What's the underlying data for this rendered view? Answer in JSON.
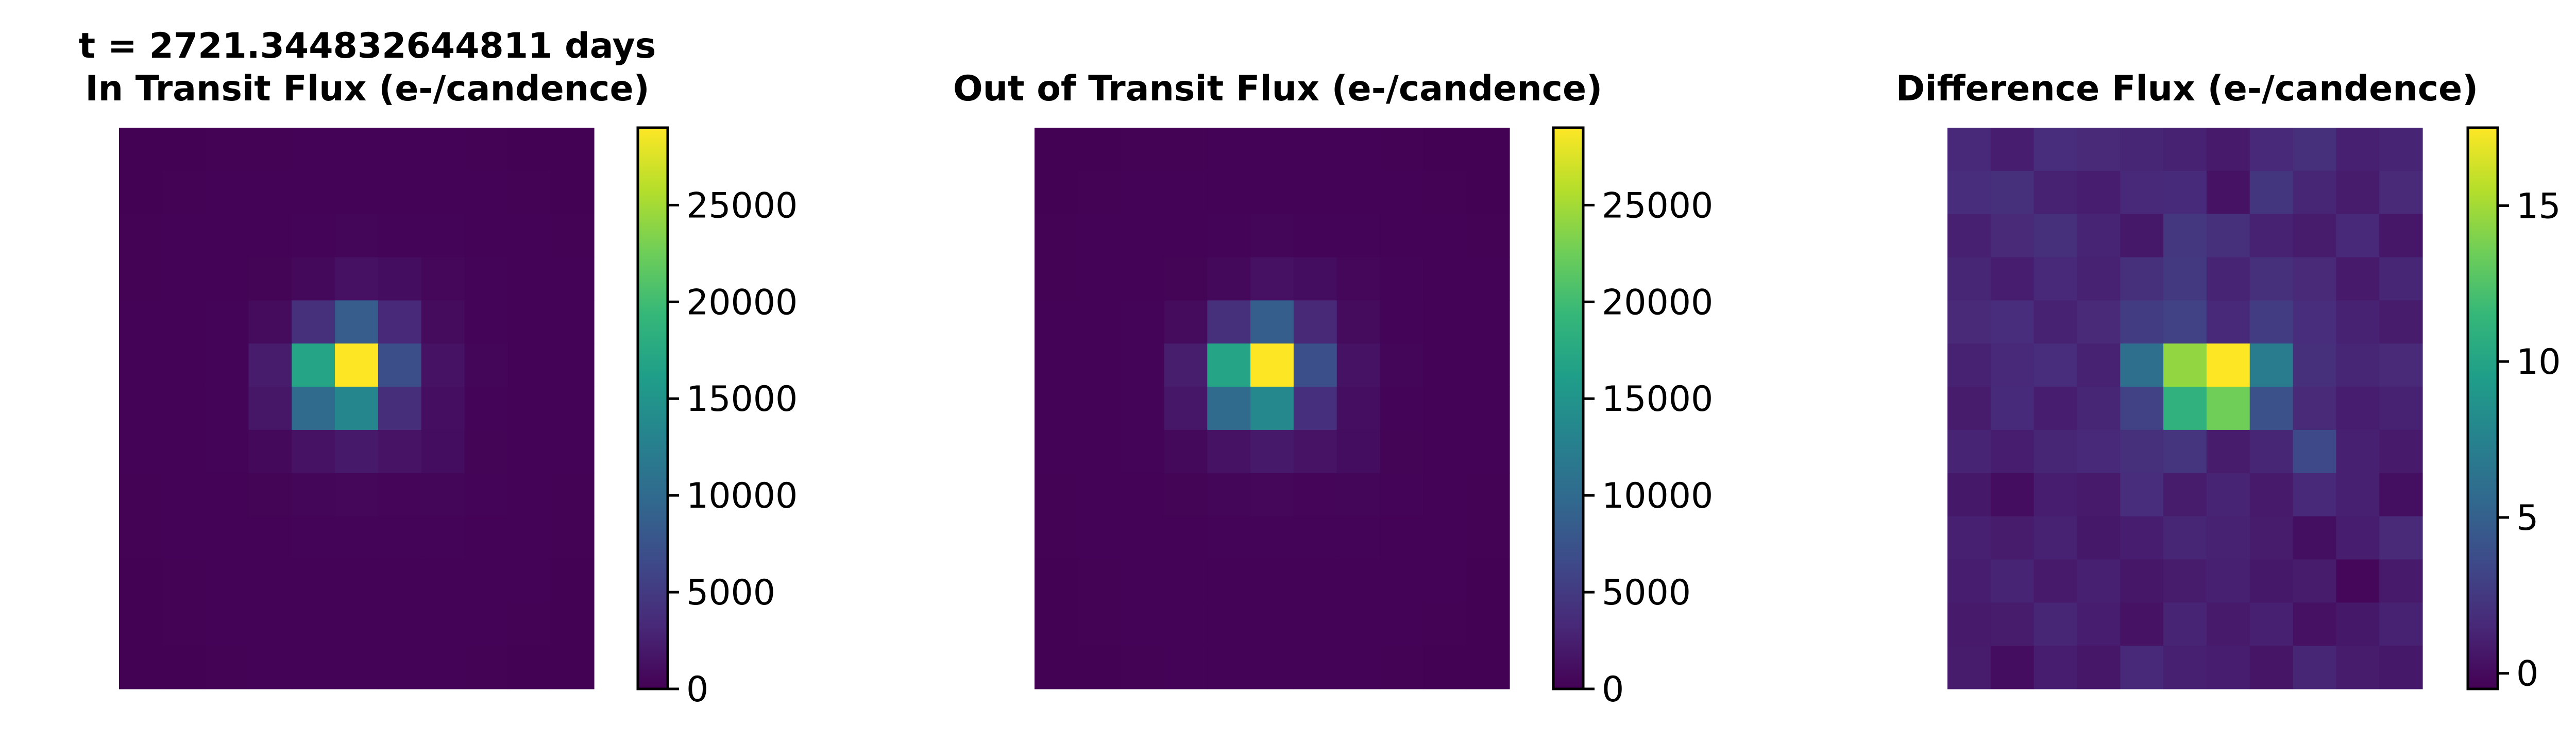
{
  "figure": {
    "time_label": "t = 2721.344832644811 days"
  },
  "colormap": {
    "name": "viridis",
    "stops": [
      "#440154",
      "#482878",
      "#3e4989",
      "#31688e",
      "#26828e",
      "#1f9e89",
      "#35b779",
      "#6ece58",
      "#b5de2b",
      "#fde725"
    ]
  },
  "chart_data": [
    {
      "type": "heatmap",
      "title": "In Transit Flux (e-/candence)",
      "rows": 13,
      "cols": 11,
      "colorbar": {
        "vmin": 0,
        "vmax": 29000,
        "ticks": [
          0,
          5000,
          10000,
          15000,
          20000,
          25000
        ],
        "tick_labels": [
          "0",
          "5000",
          "10000",
          "15000",
          "20000",
          "25000"
        ]
      },
      "values": [
        [
          120,
          120,
          130,
          130,
          140,
          150,
          150,
          140,
          130,
          120,
          120
        ],
        [
          120,
          130,
          140,
          150,
          170,
          190,
          190,
          170,
          150,
          130,
          120
        ],
        [
          130,
          140,
          160,
          190,
          250,
          400,
          350,
          250,
          180,
          150,
          130
        ],
        [
          130,
          150,
          190,
          300,
          700,
          1300,
          1000,
          500,
          250,
          170,
          140
        ],
        [
          140,
          170,
          260,
          800,
          4000,
          8500,
          3200,
          900,
          350,
          190,
          140
        ],
        [
          150,
          190,
          350,
          2200,
          17000,
          29000,
          7000,
          1400,
          400,
          200,
          150
        ],
        [
          150,
          180,
          320,
          1700,
          10000,
          13500,
          3800,
          1100,
          350,
          190,
          150
        ],
        [
          140,
          170,
          260,
          700,
          1400,
          2000,
          1500,
          1000,
          300,
          180,
          140
        ],
        [
          130,
          150,
          200,
          300,
          400,
          500,
          450,
          400,
          250,
          160,
          130
        ],
        [
          130,
          140,
          170,
          200,
          250,
          280,
          260,
          230,
          190,
          150,
          130
        ],
        [
          120,
          130,
          150,
          170,
          190,
          200,
          190,
          170,
          160,
          140,
          120
        ],
        [
          120,
          130,
          140,
          150,
          160,
          160,
          160,
          150,
          140,
          130,
          120
        ],
        [
          120,
          120,
          130,
          140,
          140,
          140,
          140,
          140,
          130,
          120,
          120
        ]
      ]
    },
    {
      "type": "heatmap",
      "title": "Out of Transit Flux (e-/candence)",
      "rows": 13,
      "cols": 11,
      "colorbar": {
        "vmin": 0,
        "vmax": 29000,
        "ticks": [
          0,
          5000,
          10000,
          15000,
          20000,
          25000
        ],
        "tick_labels": [
          "0",
          "5000",
          "10000",
          "15000",
          "20000",
          "25000"
        ]
      },
      "values": [
        [
          120,
          120,
          130,
          130,
          140,
          150,
          150,
          140,
          130,
          120,
          120
        ],
        [
          120,
          130,
          140,
          150,
          170,
          190,
          190,
          170,
          150,
          130,
          120
        ],
        [
          130,
          140,
          160,
          190,
          250,
          400,
          350,
          250,
          180,
          150,
          130
        ],
        [
          130,
          150,
          190,
          300,
          700,
          1300,
          1000,
          500,
          250,
          170,
          140
        ],
        [
          140,
          170,
          260,
          800,
          4000,
          8600,
          3300,
          900,
          350,
          190,
          140
        ],
        [
          150,
          190,
          350,
          2300,
          17000,
          29000,
          7100,
          1400,
          400,
          200,
          150
        ],
        [
          150,
          180,
          320,
          1800,
          10100,
          13600,
          3900,
          1100,
          350,
          190,
          150
        ],
        [
          140,
          170,
          260,
          700,
          1400,
          2000,
          1500,
          1000,
          300,
          180,
          140
        ],
        [
          130,
          150,
          200,
          300,
          400,
          500,
          450,
          400,
          250,
          160,
          130
        ],
        [
          130,
          140,
          170,
          200,
          250,
          280,
          260,
          230,
          190,
          150,
          130
        ],
        [
          120,
          130,
          150,
          170,
          190,
          200,
          190,
          170,
          160,
          140,
          120
        ],
        [
          120,
          130,
          140,
          150,
          160,
          160,
          160,
          150,
          140,
          130,
          120
        ],
        [
          120,
          120,
          130,
          140,
          140,
          140,
          140,
          140,
          130,
          120,
          120
        ]
      ]
    },
    {
      "type": "heatmap",
      "title": "Difference Flux (e-/candence)",
      "rows": 13,
      "cols": 11,
      "colorbar": {
        "vmin": -0.5,
        "vmax": 17.5,
        "ticks": [
          0,
          5,
          10,
          15
        ],
        "tick_labels": [
          "0",
          "5",
          "10",
          "15"
        ]
      },
      "values": [
        [
          1.5,
          1.0,
          1.8,
          1.6,
          1.4,
          1.2,
          0.8,
          1.5,
          1.9,
          1.1,
          1.3
        ],
        [
          1.8,
          2.0,
          1.2,
          1.0,
          1.5,
          1.7,
          0.4,
          2.3,
          1.4,
          0.9,
          1.6
        ],
        [
          1.1,
          1.6,
          1.9,
          1.3,
          0.7,
          2.4,
          1.9,
          1.2,
          0.9,
          1.5,
          0.6
        ],
        [
          1.4,
          1.0,
          1.5,
          1.2,
          1.9,
          2.5,
          1.3,
          1.9,
          1.6,
          0.8,
          1.4
        ],
        [
          1.6,
          1.8,
          1.2,
          1.6,
          2.8,
          3.0,
          1.5,
          2.8,
          1.8,
          1.2,
          0.9
        ],
        [
          1.2,
          1.5,
          1.8,
          1.2,
          6.0,
          14.5,
          17.5,
          7.0,
          1.9,
          1.4,
          1.6
        ],
        [
          0.9,
          1.7,
          1.0,
          1.4,
          3.0,
          11.0,
          13.5,
          4.0,
          1.6,
          1.0,
          1.2
        ],
        [
          1.3,
          1.0,
          1.4,
          1.5,
          2.0,
          2.2,
          0.9,
          1.4,
          3.5,
          1.1,
          0.8
        ],
        [
          0.7,
          0.1,
          1.0,
          0.8,
          1.8,
          0.9,
          1.3,
          0.8,
          1.5,
          1.1,
          0.2
        ],
        [
          1.1,
          0.9,
          1.2,
          0.7,
          1.0,
          1.4,
          1.2,
          0.9,
          0.2,
          1.0,
          1.6
        ],
        [
          1.0,
          1.3,
          0.8,
          1.1,
          0.6,
          0.9,
          1.1,
          0.7,
          0.9,
          -0.2,
          0.8
        ],
        [
          0.8,
          0.9,
          1.4,
          1.0,
          0.4,
          1.3,
          0.8,
          1.1,
          0.3,
          0.7,
          1.2
        ],
        [
          0.9,
          0.1,
          1.0,
          0.6,
          1.5,
          1.1,
          1.0,
          0.5,
          1.4,
          0.9,
          0.7
        ]
      ]
    }
  ]
}
